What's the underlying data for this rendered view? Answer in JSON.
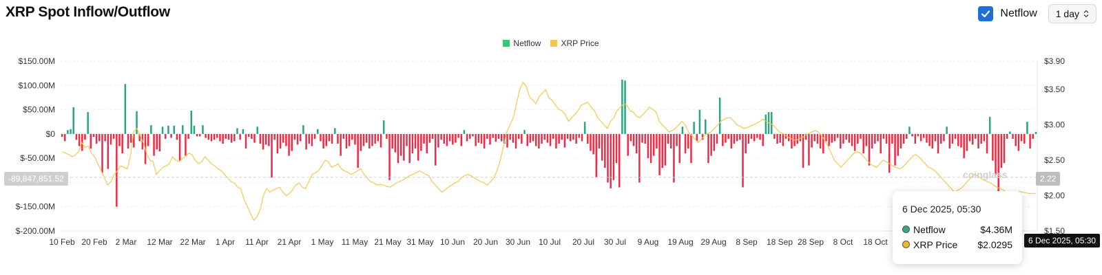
{
  "header": {
    "title": "XRP Spot Inflow/Outflow",
    "toggle_label": "Netflow",
    "interval": "1 day"
  },
  "watermark": "coinglass",
  "tooltip": {
    "date": "6 Dec 2025, 05:30",
    "rows": [
      {
        "name": "Netflow",
        "value": "$4.36M",
        "color": "#2eaa8a"
      },
      {
        "name": "XRP Price",
        "value": "$2.0295",
        "color": "#f0b731"
      }
    ]
  },
  "crosshair": {
    "x_label": "6 Dec 2025, 05:30",
    "y_right_label": "2.22",
    "y_left_label": "-89,847,851.52"
  },
  "colors": {
    "positive": "#25a67f",
    "negative": "#ee2b45",
    "price": "#f5c84c",
    "legend_netflow": "#2ecc71"
  },
  "chart_data": {
    "type": "bar",
    "legend": [
      "Netflow",
      "XRP Price"
    ],
    "x_tick_labels": [
      "10 Feb",
      "20 Feb",
      "2 Mar",
      "12 Mar",
      "22 Mar",
      "1 Apr",
      "11 Apr",
      "21 Apr",
      "1 May",
      "11 May",
      "21 May",
      "31 May",
      "10 Jun",
      "20 Jun",
      "30 Jun",
      "10 Jul",
      "20 Jul",
      "30 Jul",
      "9 Aug",
      "19 Aug",
      "29 Aug",
      "8 Sep",
      "18 Sep",
      "28 Sep",
      "8 Oct",
      "18 Oct"
    ],
    "y_left_ticks": [
      "$150.00M",
      "$100.00M",
      "$50.00M",
      "$0",
      "$-50.00M",
      "$-100.00M",
      "$-150.00M",
      "$-200.00M"
    ],
    "y_left_range": [
      -200,
      150
    ],
    "y_right_ticks": [
      "$3.90",
      "$3.50",
      "$3.00",
      "$2.50",
      "$2.00",
      "$1.50"
    ],
    "y_right_range": [
      1.5,
      3.9
    ],
    "netflow_unit": "$M",
    "series": [
      {
        "name": "Netflow",
        "values": [
          -6,
          -15,
          8,
          10,
          55,
          -12,
          -25,
          -35,
          -12,
          45,
          -30,
          -6,
          -20,
          -15,
          -80,
          -15,
          -72,
          -22,
          -10,
          -150,
          -25,
          -40,
          103,
          -30,
          -18,
          -28,
          47,
          -15,
          -32,
          -62,
          -25,
          18,
          -45,
          -32,
          -36,
          15,
          -10,
          17,
          -8,
          17,
          -12,
          -55,
          18,
          -45,
          -10,
          48,
          17,
          -5,
          -5,
          18,
          -8,
          -12,
          -15,
          -12,
          -8,
          -15,
          -20,
          -10,
          -12,
          -18,
          -15,
          12,
          -12,
          10,
          -30,
          -6,
          -10,
          -18,
          15,
          -20,
          -32,
          -22,
          -25,
          -90,
          -12,
          -40,
          -30,
          -18,
          -25,
          -45,
          -35,
          -12,
          -22,
          -15,
          18,
          -32,
          -20,
          -25,
          -10,
          10,
          -15,
          -30,
          -25,
          -15,
          -20,
          12,
          -20,
          -45,
          -10,
          -30,
          -25,
          -12,
          -22,
          -70,
          -35,
          -25,
          -18,
          -30,
          -25,
          -20,
          -15,
          -28,
          28,
          -10,
          -95,
          -30,
          -38,
          -60,
          -45,
          -55,
          -25,
          -60,
          -40,
          -30,
          -55,
          -35,
          -20,
          -40,
          -18,
          -10,
          -65,
          -28,
          -12,
          -20,
          -25,
          -15,
          -22,
          -18,
          -8,
          -25,
          8,
          -15,
          -10,
          -5,
          -25,
          -18,
          -20,
          -30,
          -10,
          -22,
          -8,
          -16,
          -10,
          -15,
          -20,
          -28,
          -12,
          -18,
          -30,
          -10,
          -20,
          8,
          -25,
          -18,
          -15,
          -25,
          -30,
          -20,
          -12,
          -18,
          -25,
          -10,
          -30,
          -20,
          -12,
          -28,
          -10,
          -15,
          -12,
          -20,
          -8,
          -15,
          25,
          -20,
          -35,
          -42,
          -90,
          -30,
          -55,
          -70,
          -100,
          -112,
          -95,
          -60,
          -110,
          112,
          110,
          -45,
          -15,
          -25,
          -40,
          -100,
          -18,
          -20,
          -50,
          -60,
          -45,
          -30,
          -85,
          -70,
          -65,
          -20,
          -30,
          -100,
          -25,
          -60,
          15,
          -40,
          -30,
          -60,
          25,
          -15,
          50,
          -12,
          30,
          -60,
          -45,
          -35,
          -20,
          75,
          -25,
          -18,
          -10,
          -30,
          -20,
          -15,
          -12,
          -110,
          -40,
          -20,
          -10,
          -15,
          -8,
          -12,
          -25,
          40,
          45,
          45,
          -10,
          -20,
          -18,
          -25,
          -10,
          -15,
          -30,
          -25,
          -20,
          -15,
          -70,
          -12,
          -65,
          -28,
          -15,
          -20,
          -30,
          -40,
          -15,
          -25,
          -18,
          -15,
          -8,
          -30,
          -20,
          -12,
          -18,
          -25,
          -35,
          -20,
          -10,
          -40,
          -25,
          -65,
          -30,
          -20,
          -15,
          -40,
          -10,
          -20,
          -80,
          -20,
          -65,
          -45,
          -30,
          -20,
          -10,
          15,
          -5,
          -20,
          -5,
          -15,
          -8,
          -18,
          -25,
          -30,
          -15,
          -40,
          -20,
          -15,
          15,
          -30,
          -20,
          -10,
          -25,
          -28,
          -50,
          -35,
          -15,
          -22,
          -10,
          -30,
          -20,
          -15,
          -40,
          35,
          -55,
          -85,
          -120,
          -70,
          -60,
          -10,
          5,
          -10,
          -25,
          -35,
          -15,
          -20,
          25,
          -30,
          -10,
          4.36
        ]
      },
      {
        "name": "XRP Price",
        "values": [
          2.62,
          2.6,
          2.58,
          2.55,
          2.57,
          2.62,
          2.75,
          2.68,
          2.7,
          2.6,
          2.55,
          2.45,
          2.35,
          2.25,
          2.15,
          2.2,
          2.3,
          2.35,
          2.42,
          2.4,
          2.38,
          2.55,
          2.9,
          2.95,
          2.85,
          2.75,
          2.6,
          2.5,
          2.48,
          2.3,
          2.35,
          2.4,
          2.42,
          2.45,
          2.55,
          2.5,
          2.48,
          2.52,
          2.56,
          2.6,
          2.58,
          2.5,
          2.45,
          2.48,
          2.55,
          2.5,
          2.45,
          2.42,
          2.38,
          2.35,
          2.3,
          2.25,
          2.2,
          2.18,
          2.12,
          2.1,
          1.95,
          1.85,
          1.75,
          1.65,
          1.7,
          1.8,
          2.0,
          2.1,
          2.05,
          2.08,
          2.1,
          2.12,
          2.05,
          2.0,
          2.03,
          2.08,
          2.15,
          2.18,
          2.12,
          2.1,
          2.2,
          2.3,
          2.32,
          2.35,
          2.42,
          2.5,
          2.48,
          2.4,
          2.42,
          2.45,
          2.38,
          2.35,
          2.33,
          2.3,
          2.32,
          2.35,
          2.38,
          2.3,
          2.25,
          2.2,
          2.18,
          2.15,
          2.16,
          2.15,
          2.13,
          2.12,
          2.15,
          2.18,
          2.2,
          2.22,
          2.25,
          2.28,
          2.3,
          2.32,
          2.35,
          2.33,
          2.3,
          2.28,
          2.2,
          2.15,
          2.1,
          2.05,
          2.08,
          2.12,
          2.15,
          2.18,
          2.2,
          2.25,
          2.28,
          2.3,
          2.28,
          2.25,
          2.22,
          2.2,
          2.18,
          2.15,
          2.2,
          2.25,
          2.35,
          2.5,
          2.7,
          2.9,
          3.0,
          3.1,
          3.3,
          3.5,
          3.6,
          3.55,
          3.4,
          3.35,
          3.3,
          3.4,
          3.45,
          3.5,
          3.38,
          3.35,
          3.28,
          3.22,
          3.2,
          3.15,
          3.05,
          3.1,
          3.15,
          3.2,
          3.28,
          3.3,
          3.32,
          3.25,
          3.2,
          3.1,
          3.05,
          3.0,
          2.95,
          3.05,
          3.1,
          3.2,
          3.25,
          3.3,
          3.28,
          3.2,
          3.18,
          3.12,
          3.1,
          3.15,
          3.2,
          3.25,
          3.22,
          3.18,
          3.05,
          3.0,
          2.95,
          2.9,
          2.92,
          2.95,
          3.0,
          3.05,
          3.0,
          2.9,
          2.85,
          2.8,
          2.75,
          2.8,
          2.85,
          2.88,
          2.9,
          2.95,
          3.0,
          3.05,
          3.08,
          3.1,
          3.1,
          3.05,
          3.0,
          2.98,
          2.95,
          2.96,
          2.98,
          3.0,
          3.02,
          3.05,
          3.08,
          3.05,
          3.02,
          3.0,
          2.95,
          2.9,
          2.88,
          2.85,
          2.82,
          2.8,
          2.78,
          2.8,
          2.82,
          2.85,
          2.88,
          2.9,
          2.92,
          2.9,
          2.85,
          2.78,
          2.7,
          2.6,
          2.5,
          2.45,
          2.4,
          2.45,
          2.5,
          2.55,
          2.6,
          2.62,
          2.6,
          2.55,
          2.5,
          2.45,
          2.42,
          2.4,
          2.45,
          2.5,
          2.48,
          2.45,
          2.42,
          2.4,
          2.38,
          2.4,
          2.45,
          2.5,
          2.55,
          2.58,
          2.55,
          2.5,
          2.45,
          2.4,
          2.38,
          2.35,
          2.3,
          2.25,
          2.2,
          2.15,
          2.1,
          2.05,
          2.08,
          2.1,
          2.15,
          2.2,
          2.25,
          2.3,
          2.28,
          2.25,
          2.22,
          2.2,
          2.18,
          2.15,
          2.12,
          2.1,
          2.08,
          2.05,
          2.03,
          2.05,
          2.04,
          2.06,
          2.05,
          2.04,
          2.03,
          2.03,
          2.03
        ]
      }
    ]
  }
}
